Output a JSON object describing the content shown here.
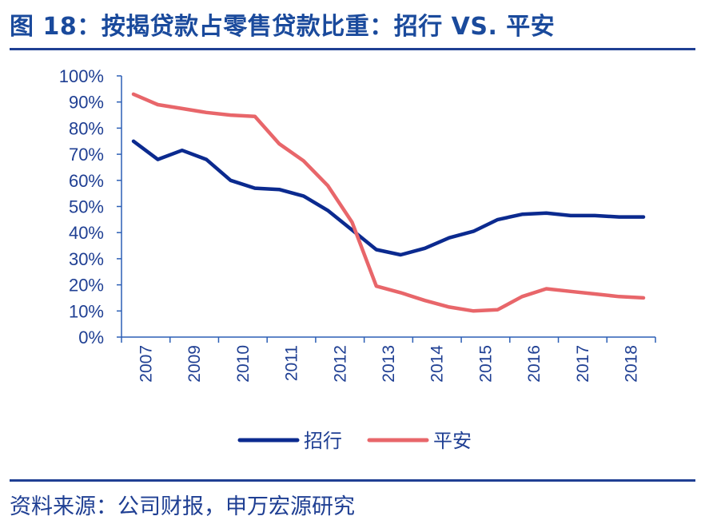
{
  "title": "图 18：按揭贷款占零售贷款比重：招行 VS. 平安",
  "source": "资料来源：公司财报，申万宏源研究",
  "colors": {
    "zhaohang": "#0b2a8f",
    "pingan": "#e8666a",
    "axis": "#2c5fb5",
    "text": "#1f3f93"
  },
  "chart_data": {
    "type": "line",
    "title": "图 18：按揭贷款占零售贷款比重：招行 VS. 平安",
    "xlabel": "",
    "ylabel": "",
    "ylim": [
      0,
      100
    ],
    "y_ticks": [
      "0%",
      "10%",
      "20%",
      "30%",
      "40%",
      "50%",
      "60%",
      "70%",
      "80%",
      "90%",
      "100%"
    ],
    "x_tick_labels": [
      "2007",
      "2009",
      "2010",
      "2011",
      "2012",
      "2013",
      "2014",
      "2015",
      "2016",
      "2017",
      "2018"
    ],
    "grid": false,
    "legend": "bottom-center",
    "series": [
      {
        "name": "招行",
        "values": [
          75,
          68,
          71.5,
          68,
          60,
          57,
          56.5,
          54,
          48.5,
          41,
          33.5,
          31.5,
          34,
          38,
          40.5,
          45,
          47,
          47.5,
          46.5,
          46.5,
          46,
          46
        ]
      },
      {
        "name": "平安",
        "values": [
          93,
          89,
          87.5,
          86,
          85,
          84.5,
          74,
          67.5,
          58,
          44,
          19.5,
          17,
          14,
          11.5,
          10,
          10.5,
          15.5,
          18.5,
          17.5,
          16.5,
          15.5,
          15
        ]
      }
    ]
  }
}
